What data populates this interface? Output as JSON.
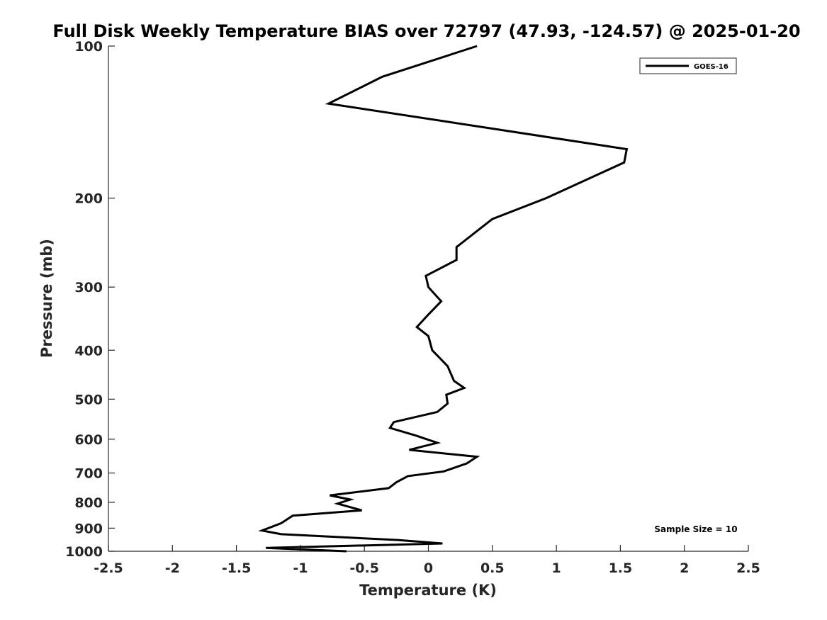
{
  "chart_data": {
    "type": "line",
    "title": "Full Disk Weekly Temperature BIAS over 72797 (47.93, -124.57) @ 2025-01-20",
    "xlabel": "Temperature (K)",
    "ylabel": "Pressure (mb)",
    "xlim": [
      -2.5,
      2.5
    ],
    "ylim": [
      100,
      1000
    ],
    "y_scale": "log",
    "y_reversed": true,
    "x_ticks": [
      -2.5,
      -2,
      -1.5,
      -1,
      -0.5,
      0,
      0.5,
      1,
      1.5,
      2,
      2.5
    ],
    "x_tick_labels": [
      "-2.5",
      "-2",
      "-1.5",
      "-1",
      "-0.5",
      "0",
      "0.5",
      "1",
      "1.5",
      "2",
      "2.5"
    ],
    "y_ticks": [
      100,
      200,
      300,
      400,
      500,
      600,
      700,
      800,
      900,
      1000
    ],
    "y_tick_labels": [
      "100",
      "200",
      "300",
      "400",
      "500",
      "600",
      "700",
      "800",
      "900",
      "1000"
    ],
    "grid": false,
    "legend_position": "top-right",
    "series": [
      {
        "name": "GOES-16",
        "color": "#000000",
        "x": [
          0.38,
          -0.36,
          -0.78,
          1.55,
          1.53,
          0.92,
          0.5,
          0.22,
          0.22,
          -0.02,
          0.0,
          0.1,
          0.0,
          -0.09,
          0.0,
          0.03,
          0.15,
          0.2,
          0.28,
          0.14,
          0.15,
          0.07,
          -0.27,
          -0.3,
          -0.1,
          0.07,
          -0.15,
          0.38,
          0.3,
          0.12,
          -0.16,
          -0.25,
          -0.31,
          -0.77,
          -0.61,
          -0.71,
          -0.52,
          -1.06,
          -1.15,
          -1.3,
          -1.15,
          -0.24,
          0.11,
          -1.27,
          -0.64
        ],
        "y": [
          100,
          115,
          130,
          160,
          170,
          200,
          220,
          250,
          265,
          285,
          300,
          320,
          340,
          360,
          375,
          400,
          430,
          460,
          475,
          490,
          510,
          530,
          555,
          570,
          590,
          610,
          630,
          650,
          670,
          695,
          710,
          730,
          750,
          775,
          790,
          805,
          830,
          850,
          880,
          910,
          925,
          950,
          965,
          985,
          1000
        ]
      }
    ],
    "annotations": [
      "Sample Size = 10"
    ]
  }
}
